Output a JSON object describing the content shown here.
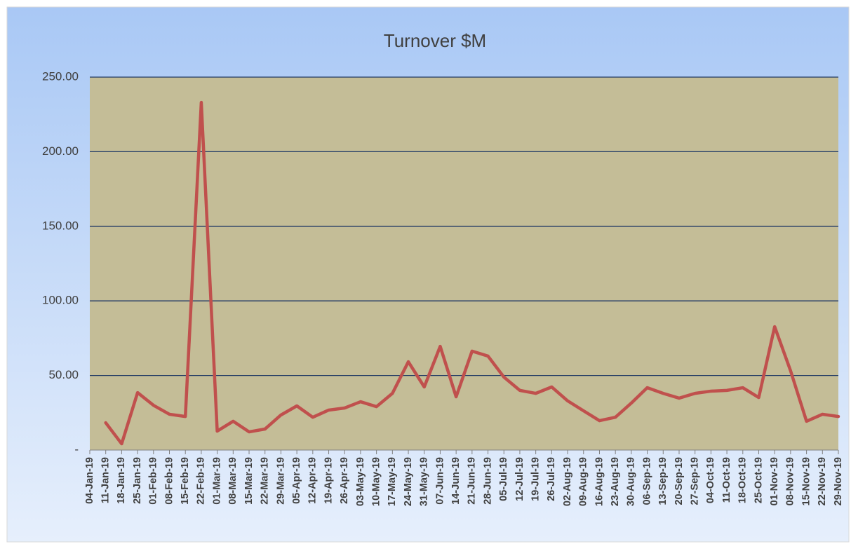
{
  "chart_data": {
    "type": "line",
    "title": "Turnover $M",
    "categories": [
      "04-Jan-19",
      "11-Jan-19",
      "18-Jan-19",
      "25-Jan-19",
      "01-Feb-19",
      "08-Feb-19",
      "15-Feb-19",
      "22-Feb-19",
      "01-Mar-19",
      "08-Mar-19",
      "15-Mar-19",
      "22-Mar-19",
      "29-Mar-19",
      "05-Apr-19",
      "12-Apr-19",
      "19-Apr-19",
      "26-Apr-19",
      "03-May-19",
      "10-May-19",
      "17-May-19",
      "24-May-19",
      "31-May-19",
      "07-Jun-19",
      "14-Jun-19",
      "21-Jun-19",
      "28-Jun-19",
      "05-Jul-19",
      "12-Jul-19",
      "19-Jul-19",
      "26-Jul-19",
      "02-Aug-19",
      "09-Aug-19",
      "16-Aug-19",
      "23-Aug-19",
      "30-Aug-19",
      "06-Sep-19",
      "13-Sep-19",
      "20-Sep-19",
      "27-Sep-19",
      "04-Oct-19",
      "11-Oct-19",
      "18-Oct-19",
      "25-Oct-19",
      "01-Nov-19",
      "08-Nov-19",
      "15-Nov-19",
      "22-Nov-19",
      "29-Nov-19"
    ],
    "values": [
      null,
      18.3,
      4.2,
      38.5,
      30,
      24,
      22.5,
      233,
      12.7,
      19.3,
      12.2,
      14.1,
      23.5,
      29.6,
      22,
      26.8,
      28.2,
      32.4,
      29.1,
      38,
      59.2,
      42.3,
      69.5,
      35.7,
      66.3,
      63,
      48.9,
      40,
      38,
      42.3,
      33,
      26.3,
      19.7,
      22,
      31.5,
      41.8,
      38,
      34.8,
      38,
      39.5,
      40,
      41.8,
      35.2,
      82.7,
      53.1,
      19.3,
      24,
      22.5
    ],
    "color": "#c0504d",
    "ylim": [
      0,
      250
    ],
    "yticks": [
      {
        "value": 0,
        "label": "-"
      },
      {
        "value": 50,
        "label": "50.00"
      },
      {
        "value": 100,
        "label": "100.00"
      },
      {
        "value": 150,
        "label": "150.00"
      },
      {
        "value": 200,
        "label": "200.00"
      },
      {
        "value": 250,
        "label": "250.00"
      }
    ],
    "grid": true
  }
}
